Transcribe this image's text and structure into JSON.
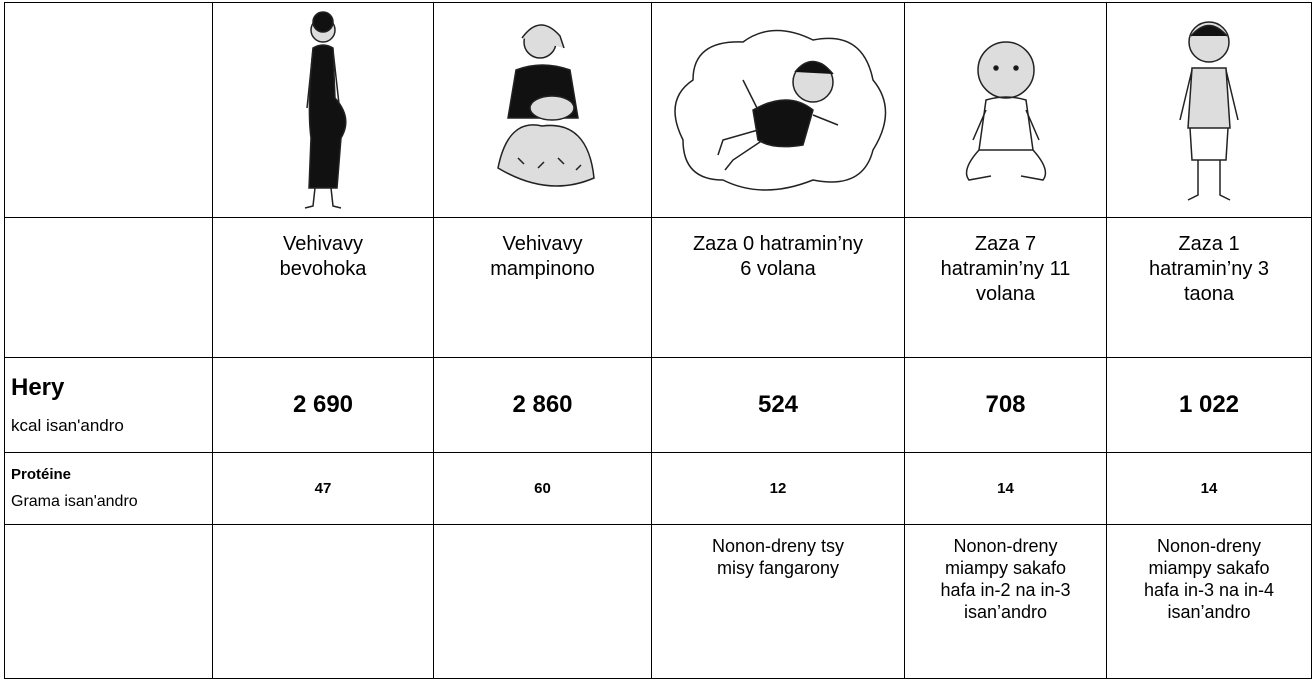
{
  "table": {
    "columns": [
      "Vehivavy\nbevohoka",
      "Vehivavy\nmampinono",
      "Zaza 0 hatramin’ny\n6 volana",
      "Zaza 7\nhatramin’ny 11\nvolana",
      "Zaza 1\nhatramin’ny 3\ntaona"
    ],
    "rows": [
      {
        "label": "Hery",
        "unit": "kcal isan'andro",
        "values": [
          "2 690",
          "2 860",
          "524",
          "708",
          "1 022"
        ]
      },
      {
        "label": "Protéine",
        "unit": "Grama isan'andro",
        "values": [
          47,
          60,
          12,
          14,
          14
        ]
      }
    ],
    "notes": [
      null,
      null,
      "Nonon-dreny tsy\nmisy fangarony",
      "Nonon-dreny\nmiampy sakafo\nhafa in-2 na in-3\nisan’andro",
      "Nonon-dreny\nmiampy sakafo\nhafa in-3 na in-4\nisan’andro"
    ]
  }
}
